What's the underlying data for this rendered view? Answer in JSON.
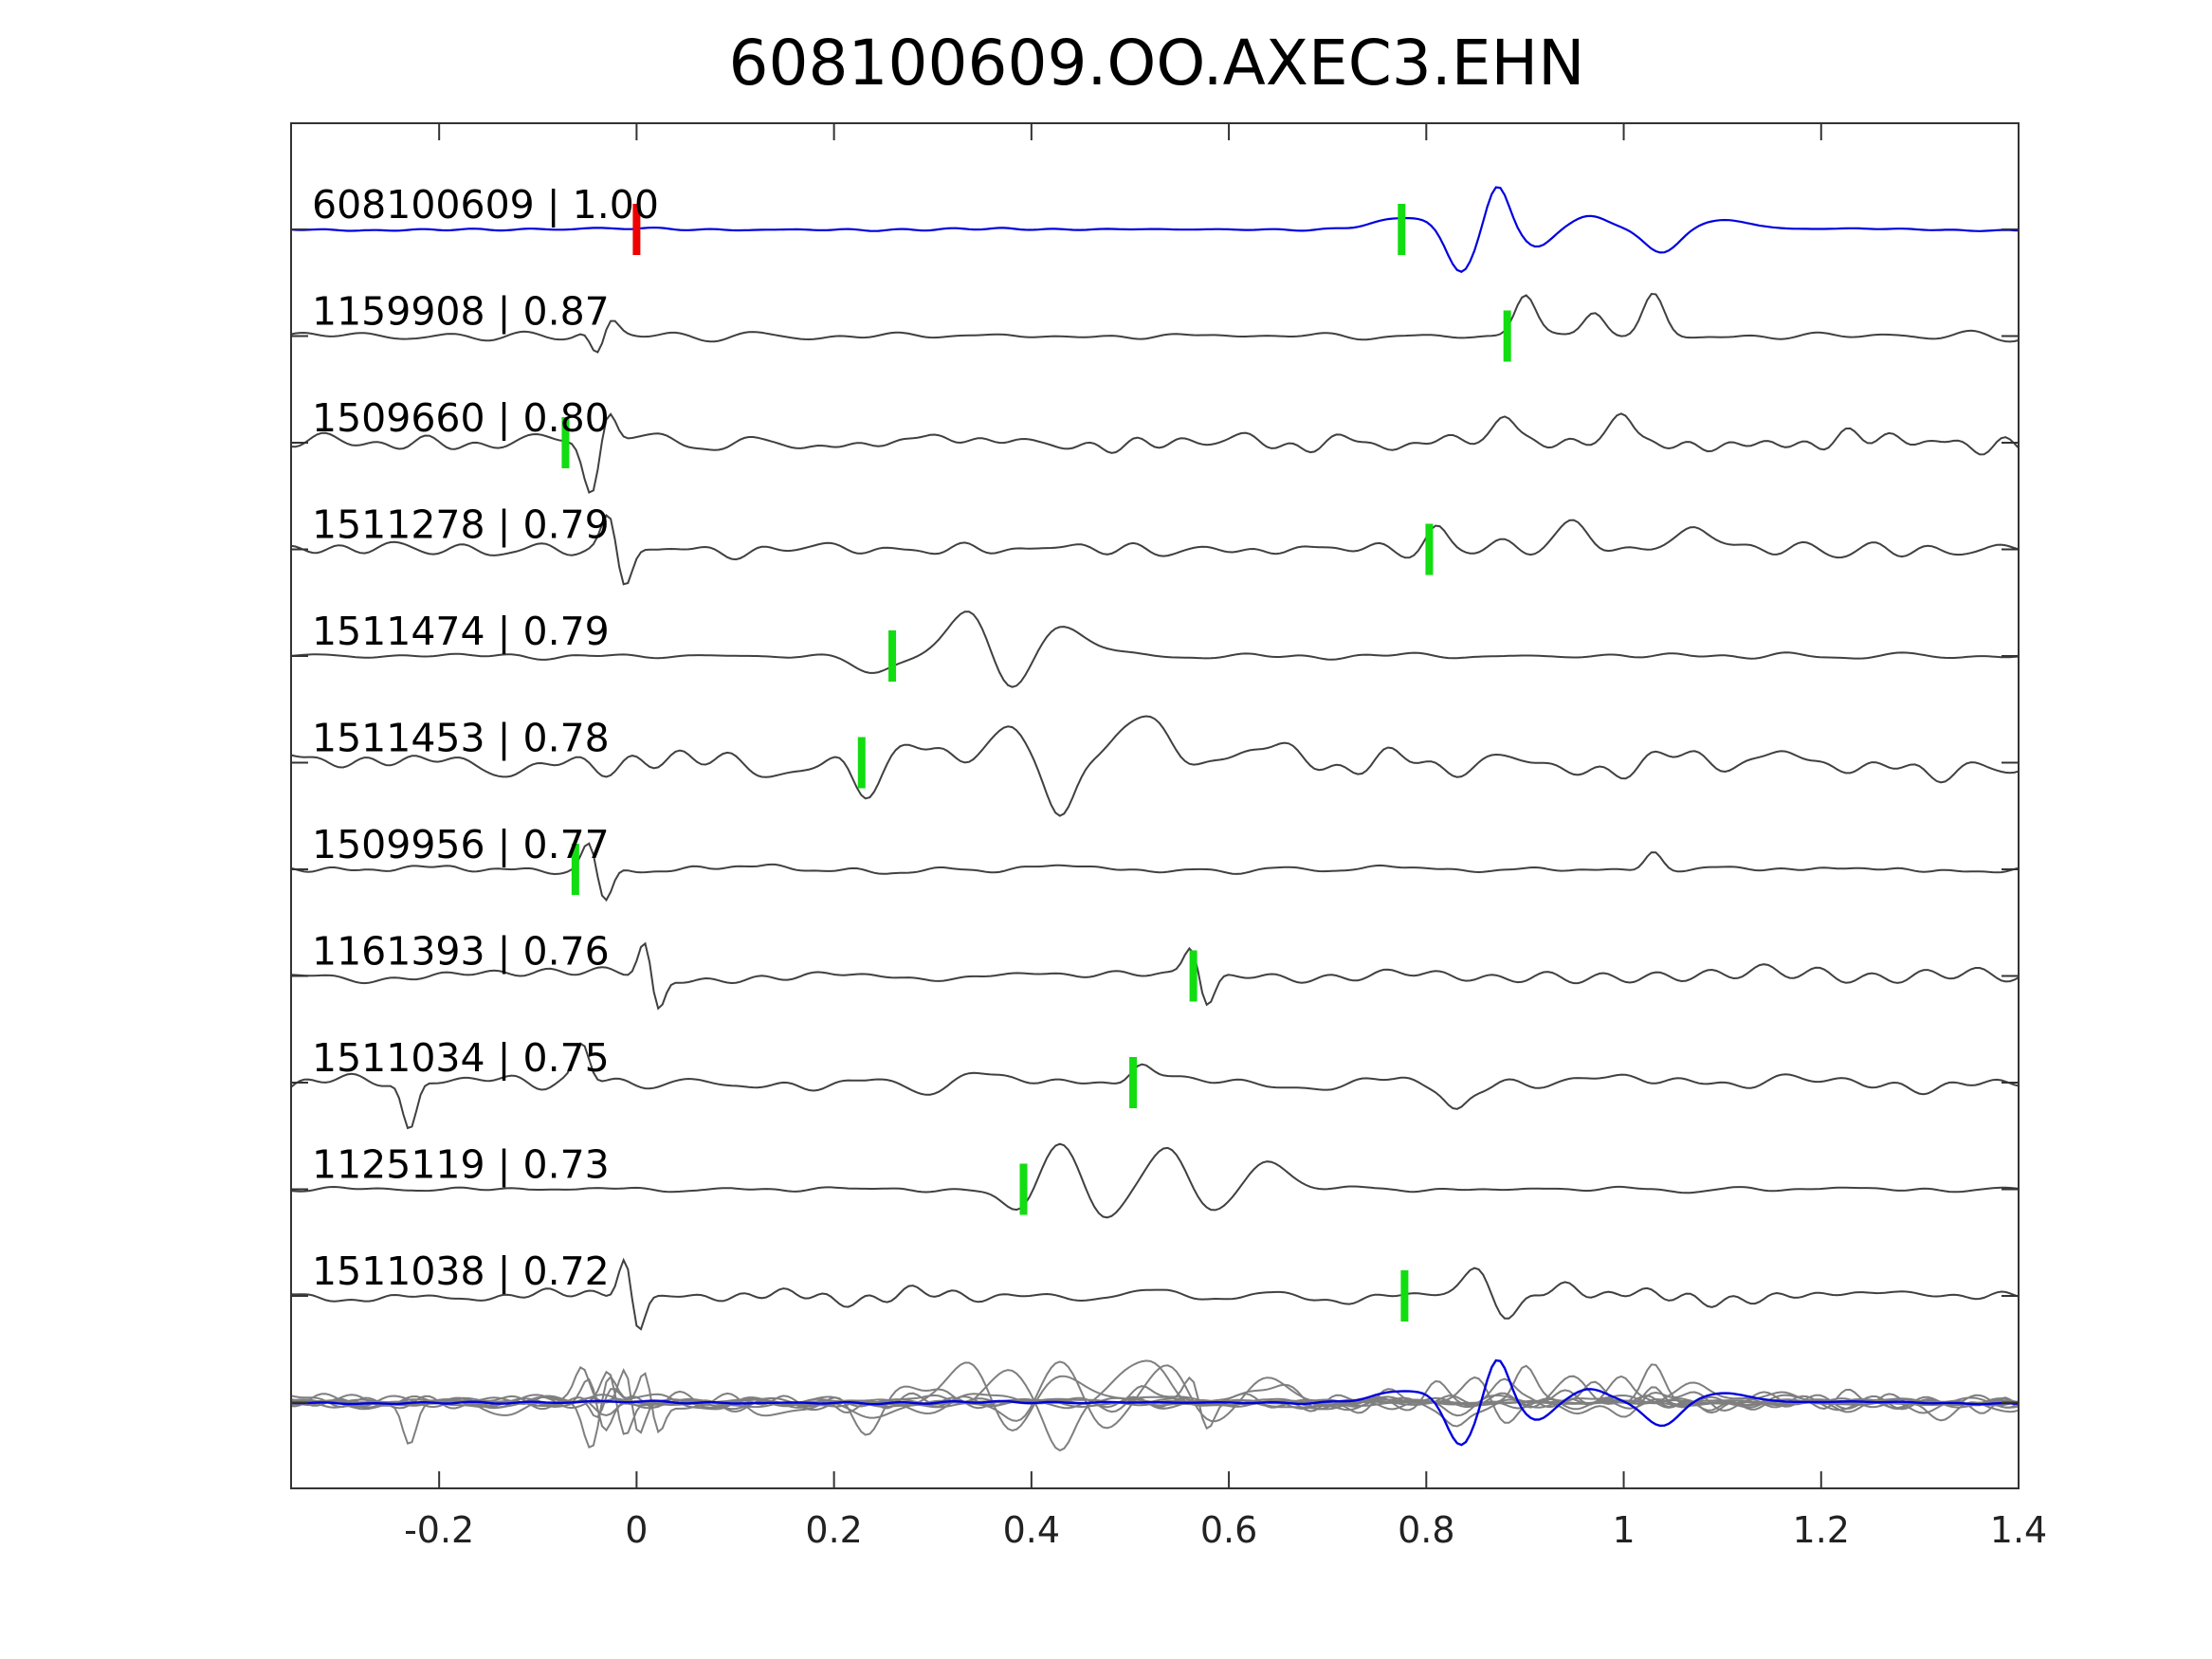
{
  "chart_data": {
    "type": "line",
    "title": "608100609.OO.AXEC3.EHN",
    "xlabel": "",
    "ylabel": "",
    "xlim": [
      -0.35,
      1.4
    ],
    "x_ticks": [
      "-0.2",
      "0",
      "0.2",
      "0.4",
      "0.6",
      "0.8",
      "1",
      "1.2",
      "1.4"
    ],
    "x_tick_values": [
      -0.2,
      0,
      0.2,
      0.4,
      0.6,
      0.8,
      1.0,
      1.2,
      1.4
    ],
    "grid": false,
    "colors": {
      "template": "#0000dd",
      "match": "#404040",
      "stack": "#7f7f7f",
      "origin_pick": "#ee0000",
      "phase_pick": "#11dd11",
      "axes": "#333333"
    },
    "reference_pick_time": 0.0,
    "series": [
      {
        "label": "608100609 | 1.00",
        "id": "608100609",
        "cc": 1.0,
        "pick_time": 0.775,
        "template": true,
        "events": [
          [
            0.78,
            0.25,
            0.045
          ],
          [
            0.835,
            -1.0,
            0.02
          ],
          [
            0.872,
            1.0,
            0.016
          ],
          [
            0.91,
            -0.4,
            0.02
          ],
          [
            0.97,
            0.3,
            0.025
          ],
          [
            1.04,
            -0.5,
            0.025
          ],
          [
            1.1,
            0.2,
            0.04
          ]
        ],
        "noise": 0.03,
        "seed": 11
      },
      {
        "label": "1159908 | 0.87",
        "id": "1159908",
        "cc": 0.87,
        "pick_time": 0.882,
        "template": false,
        "events": [
          [
            -0.045,
            0.6,
            0.012
          ],
          [
            -0.04,
            -1.2,
            0.012
          ],
          [
            -0.03,
            0.6,
            0.012
          ],
          [
            0.9,
            0.9,
            0.015
          ],
          [
            0.97,
            0.5,
            0.015
          ],
          [
            1.03,
            0.9,
            0.015
          ]
        ],
        "noise": 0.12,
        "seed": 23
      },
      {
        "label": "1509660 | 0.80",
        "id": "1509660",
        "cc": 0.8,
        "pick_time": -0.072,
        "template": false,
        "events": [
          [
            -0.045,
            -1.2,
            0.012
          ],
          [
            -0.03,
            1.0,
            0.012
          ],
          [
            0.88,
            0.6,
            0.015
          ],
          [
            1.0,
            0.6,
            0.015
          ]
        ],
        "noise": 0.18,
        "seed": 37
      },
      {
        "label": "1511278 | 0.79",
        "id": "1511278",
        "cc": 0.79,
        "pick_time": 0.803,
        "template": false,
        "events": [
          [
            -0.025,
            1.2,
            0.012
          ],
          [
            -0.015,
            -1.3,
            0.012
          ],
          [
            0.81,
            0.5,
            0.015
          ],
          [
            0.95,
            0.6,
            0.02
          ],
          [
            1.07,
            0.6,
            0.02
          ]
        ],
        "noise": 0.16,
        "seed": 41
      },
      {
        "label": "1511474 | 0.79",
        "id": "1511474",
        "cc": 0.79,
        "pick_time": 0.259,
        "template": false,
        "events": [
          [
            0.24,
            -0.4,
            0.025
          ],
          [
            0.34,
            1.2,
            0.03
          ],
          [
            0.375,
            -1.0,
            0.03
          ],
          [
            0.43,
            0.7,
            0.035
          ]
        ],
        "noise": 0.06,
        "seed": 53
      },
      {
        "label": "1511453 | 0.78",
        "id": "1511453",
        "cc": 0.78,
        "pick_time": 0.228,
        "template": false,
        "events": [
          [
            0.23,
            -0.7,
            0.02
          ],
          [
            0.28,
            0.5,
            0.02
          ],
          [
            0.38,
            0.8,
            0.02
          ],
          [
            0.43,
            -1.0,
            0.02
          ],
          [
            0.52,
            1.0,
            0.03
          ],
          [
            0.65,
            0.4,
            0.03
          ],
          [
            1.32,
            -0.6,
            0.025
          ]
        ],
        "noise": 0.3,
        "seed": 67
      },
      {
        "label": "1509956 | 0.77",
        "id": "1509956",
        "cc": 0.77,
        "pick_time": -0.062,
        "template": false,
        "events": [
          [
            -0.045,
            1.0,
            0.012
          ],
          [
            -0.035,
            -1.1,
            0.012
          ],
          [
            1.03,
            0.4,
            0.012
          ]
        ],
        "noise": 0.09,
        "seed": 71
      },
      {
        "label": "1161393 | 0.76",
        "id": "1161393",
        "cc": 0.76,
        "pick_time": 0.564,
        "template": false,
        "events": [
          [
            0.01,
            1.0,
            0.01
          ],
          [
            0.02,
            -1.0,
            0.01
          ],
          [
            0.565,
            1.0,
            0.012
          ],
          [
            0.575,
            -1.0,
            0.012
          ]
        ],
        "noise": 0.17,
        "seed": 83
      },
      {
        "label": "1511034 | 0.75",
        "id": "1511034",
        "cc": 0.75,
        "pick_time": 0.503,
        "template": false,
        "events": [
          [
            -0.23,
            -1.1,
            0.01
          ],
          [
            -0.055,
            0.8,
            0.01
          ],
          [
            0.51,
            0.4,
            0.015
          ],
          [
            0.83,
            -0.5,
            0.015
          ]
        ],
        "noise": 0.2,
        "seed": 97
      },
      {
        "label": "1125119 | 0.73",
        "id": "1125119",
        "cc": 0.73,
        "pick_time": 0.392,
        "template": false,
        "events": [
          [
            0.39,
            -0.6,
            0.025
          ],
          [
            0.43,
            1.2,
            0.03
          ],
          [
            0.47,
            -0.8,
            0.03
          ],
          [
            0.54,
            1.0,
            0.03
          ],
          [
            0.58,
            -0.6,
            0.03
          ],
          [
            0.64,
            0.6,
            0.03
          ]
        ],
        "noise": 0.05,
        "seed": 101
      },
      {
        "label": "1511038 | 0.72",
        "id": "1511038",
        "cc": 0.72,
        "pick_time": 0.778,
        "template": false,
        "events": [
          [
            -0.01,
            1.1,
            0.01
          ],
          [
            0.0,
            -1.1,
            0.01
          ],
          [
            0.85,
            0.6,
            0.02
          ],
          [
            0.88,
            -0.6,
            0.02
          ],
          [
            0.94,
            0.3,
            0.02
          ]
        ],
        "noise": 0.15,
        "seed": 113
      }
    ]
  }
}
